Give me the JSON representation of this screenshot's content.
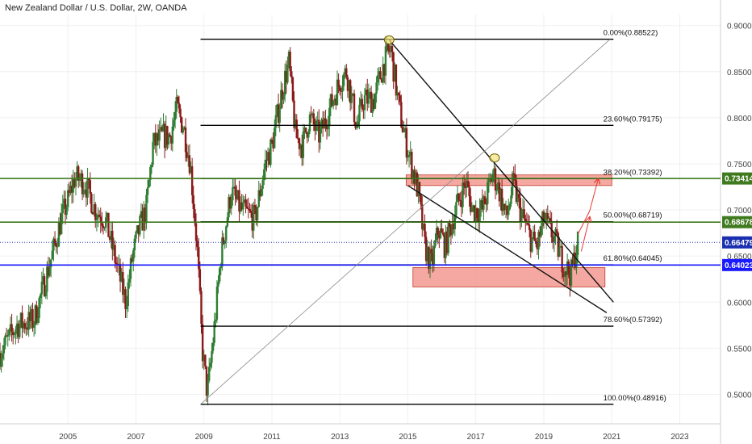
{
  "chart_data": {
    "type": "candlestick",
    "title": "New Zealand Dollar / U.S. Dollar, 2W, OANDA",
    "x_range": [
      2003.0,
      2024.2
    ],
    "ylim": [
      0.468,
      0.912
    ],
    "y_ticks": [
      "0.90000",
      "0.85000",
      "0.80000",
      "0.75000",
      "0.70000",
      "0.65000",
      "0.60000",
      "0.55000",
      "0.50000"
    ],
    "y_tick_values": [
      0.9,
      0.85,
      0.8,
      0.75,
      0.7,
      0.65,
      0.6,
      0.55,
      0.5
    ],
    "x_ticks": [
      "2005",
      "2007",
      "2009",
      "2011",
      "2013",
      "2015",
      "2017",
      "2019",
      "2021",
      "2023"
    ],
    "x_tick_values": [
      2005,
      2007,
      2009,
      2011,
      2013,
      2015,
      2017,
      2019,
      2021,
      2023
    ],
    "price_path": [
      [
        2003.0,
        0.545
      ],
      [
        2003.5,
        0.575
      ],
      [
        2004.0,
        0.58
      ],
      [
        2004.3,
        0.62
      ],
      [
        2004.6,
        0.66
      ],
      [
        2004.8,
        0.69
      ],
      [
        2005.0,
        0.71
      ],
      [
        2005.2,
        0.735
      ],
      [
        2005.5,
        0.73
      ],
      [
        2005.8,
        0.7
      ],
      [
        2006.1,
        0.69
      ],
      [
        2006.5,
        0.63
      ],
      [
        2006.7,
        0.6
      ],
      [
        2006.9,
        0.65
      ],
      [
        2007.1,
        0.68
      ],
      [
        2007.3,
        0.7
      ],
      [
        2007.5,
        0.77
      ],
      [
        2007.8,
        0.78
      ],
      [
        2008.0,
        0.78
      ],
      [
        2008.2,
        0.81
      ],
      [
        2008.4,
        0.79
      ],
      [
        2008.6,
        0.75
      ],
      [
        2008.8,
        0.66
      ],
      [
        2008.95,
        0.55
      ],
      [
        2009.1,
        0.5
      ],
      [
        2009.3,
        0.57
      ],
      [
        2009.5,
        0.65
      ],
      [
        2009.8,
        0.72
      ],
      [
        2010.1,
        0.7
      ],
      [
        2010.5,
        0.69
      ],
      [
        2010.8,
        0.75
      ],
      [
        2011.0,
        0.77
      ],
      [
        2011.3,
        0.83
      ],
      [
        2011.5,
        0.86
      ],
      [
        2011.7,
        0.78
      ],
      [
        2011.9,
        0.77
      ],
      [
        2012.1,
        0.8
      ],
      [
        2012.4,
        0.78
      ],
      [
        2012.7,
        0.81
      ],
      [
        2013.0,
        0.84
      ],
      [
        2013.2,
        0.85
      ],
      [
        2013.5,
        0.79
      ],
      [
        2013.7,
        0.82
      ],
      [
        2014.0,
        0.82
      ],
      [
        2014.3,
        0.86
      ],
      [
        2014.5,
        0.875
      ],
      [
        2014.7,
        0.82
      ],
      [
        2014.9,
        0.78
      ],
      [
        2015.1,
        0.75
      ],
      [
        2015.3,
        0.72
      ],
      [
        2015.5,
        0.66
      ],
      [
        2015.7,
        0.64
      ],
      [
        2015.9,
        0.68
      ],
      [
        2016.1,
        0.66
      ],
      [
        2016.4,
        0.7
      ],
      [
        2016.7,
        0.73
      ],
      [
        2016.9,
        0.7
      ],
      [
        2017.2,
        0.7
      ],
      [
        2017.5,
        0.74
      ],
      [
        2017.7,
        0.72
      ],
      [
        2017.9,
        0.69
      ],
      [
        2018.1,
        0.73
      ],
      [
        2018.3,
        0.7
      ],
      [
        2018.6,
        0.67
      ],
      [
        2018.8,
        0.66
      ],
      [
        2019.0,
        0.69
      ],
      [
        2019.3,
        0.67
      ],
      [
        2019.6,
        0.64
      ],
      [
        2019.8,
        0.63
      ],
      [
        2020.0,
        0.665
      ]
    ],
    "fib_levels": [
      {
        "label": "0.00%(0.88522)",
        "value": 0.88522
      },
      {
        "label": "23.60%(0.79175)",
        "value": 0.79175
      },
      {
        "label": "38.20%(0.73392)",
        "value": 0.73392
      },
      {
        "label": "50.00%(0.68719)",
        "value": 0.68719
      },
      {
        "label": "61.80%(0.64045)",
        "value": 0.64045
      },
      {
        "label": "78.60%(0.57392)",
        "value": 0.57392
      },
      {
        "label": "100.00%(0.48916)",
        "value": 0.48916
      }
    ],
    "horizontal_lines": [
      {
        "label": "0.73414",
        "value": 0.73414,
        "color": "#3f7a1e"
      },
      {
        "label": "0.68678",
        "value": 0.68678,
        "color": "#3f7a1e"
      },
      {
        "label": "0.66479",
        "value": 0.66479,
        "color": "#1a2fb0"
      },
      {
        "label": "0.64023",
        "value": 0.64023,
        "color": "#1a1aff"
      }
    ],
    "current_price": "0.66479",
    "zones": [
      {
        "x0": 2014.95,
        "x1": 2021.0,
        "y0": 0.7265,
        "y1": 0.738,
        "color": "#f28b82"
      },
      {
        "x0": 2015.15,
        "x1": 2020.8,
        "y0": 0.6165,
        "y1": 0.6375,
        "color": "#f28b82"
      }
    ],
    "trendlines": [
      {
        "x0": 2014.45,
        "y0": 0.8845,
        "x1": 2021.05,
        "y1": 0.6
      },
      {
        "x0": 2015.0,
        "y0": 0.7265,
        "x1": 2020.85,
        "y1": 0.5885
      },
      {
        "x0": 2008.9,
        "y0": 0.4892,
        "x1": 2020.95,
        "y1": 0.8852
      }
    ],
    "markers": [
      {
        "x": 2014.45,
        "y": 0.8845
      },
      {
        "x": 2017.55,
        "y": 0.7565
      }
    ],
    "arrows": [
      {
        "x0": 2020.0,
        "y0": 0.6735,
        "x1": 2020.35,
        "y1": 0.699
      },
      {
        "x0": 2020.35,
        "y0": 0.699,
        "x1": 2020.6,
        "y1": 0.7335
      },
      {
        "x0": 2020.1,
        "y0": 0.655,
        "x1": 2020.35,
        "y1": 0.692
      }
    ],
    "colors": {
      "up": "#2e7d32",
      "down": "#8b1a1a",
      "grid": "#f0f0f0",
      "fib_line": "#000000"
    }
  }
}
